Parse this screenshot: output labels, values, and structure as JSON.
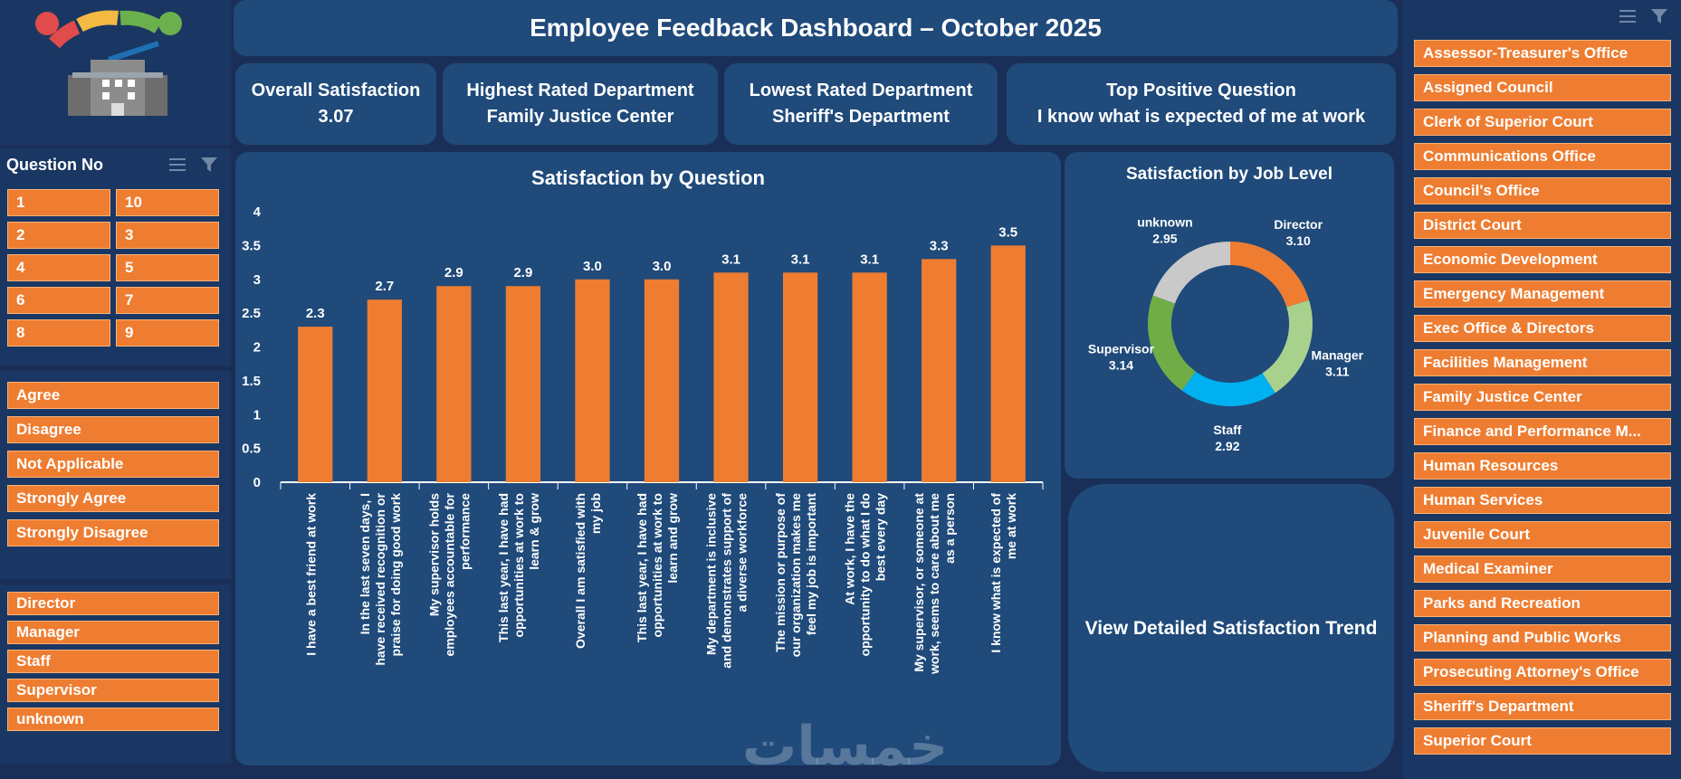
{
  "header": {
    "title": "Employee Feedback Dashboard – October 2025"
  },
  "kpis": [
    {
      "label": "Overall Satisfaction",
      "value": "3.07"
    },
    {
      "label": "Highest Rated Department",
      "value": "Family Justice Center"
    },
    {
      "label": "Lowest Rated Department",
      "value": "Sheriff's Department"
    },
    {
      "label": "Top Positive Question",
      "value": "I know what is expected of me at work"
    }
  ],
  "question_slicer": {
    "title": "Question No",
    "items": [
      "1",
      "10",
      "2",
      "3",
      "4",
      "5",
      "6",
      "7",
      "8",
      "9"
    ]
  },
  "answer_slicer": {
    "items": [
      "Agree",
      "Disagree",
      "Not Applicable",
      "Strongly Agree",
      "Strongly Disagree"
    ]
  },
  "level_slicer": {
    "items": [
      "Director",
      "Manager",
      "Staff",
      "Supervisor",
      "unknown"
    ]
  },
  "department_slicer": {
    "items": [
      "Assessor-Treasurer's Office",
      "Assigned Council",
      "Clerk of Superior Court",
      "Communications Office",
      "Council's Office",
      "District Court",
      "Economic Development",
      "Emergency Management",
      "Exec Office & Directors",
      "Facilities Management",
      "Family Justice Center",
      "Finance and Performance M...",
      "Human Resources",
      "Human Services",
      "Juvenile Court",
      "Medical Examiner",
      "Parks and Recreation",
      "Planning and Public Works",
      "Prosecuting Attorney's Office",
      "Sheriff's Department",
      "Superior Court"
    ]
  },
  "trend_button": {
    "label": "View Detailed Satisfaction Trend"
  },
  "watermark": "خمسات",
  "colors": {
    "accent": "#ee7d31",
    "panel": "#1f4a7a",
    "background": "#1a2f57"
  },
  "chart_data": [
    {
      "type": "bar",
      "title": "Satisfaction by Question",
      "categories": [
        "I have a best friend at work",
        "In the last seven days, I have received recognition or praise for doing good work",
        "My supervisor holds employees accountable for performance",
        "This last year, I have had opportunities at work to learn & grow",
        "Overall I am satisfied with my job",
        "This last year, I have had opportunities at work to learn and grow",
        "My department is inclusive and demonstrates support of a diverse workforce",
        "The mission or purpose of our organization makes me feel my job is important",
        "At work, I have the opportunity to do what I do best every day",
        "My supervisor, or someone at work, seems to care about me as a person",
        "I know what is expected of me at work"
      ],
      "values": [
        2.3,
        2.7,
        2.9,
        2.9,
        3.0,
        3.0,
        3.1,
        3.1,
        3.1,
        3.3,
        3.5
      ],
      "data_labels": [
        "2.3",
        "2.7",
        "2.9",
        "2.9",
        "3.0",
        "3.0",
        "3.1",
        "3.1",
        "3.1",
        "3.3",
        "3.5"
      ],
      "ylim": [
        0,
        4
      ],
      "yticks": [
        "0",
        "0.5",
        "1",
        "1.5",
        "2",
        "2.5",
        "3",
        "3.5",
        "4"
      ],
      "color": "#ee7d31",
      "grid": false
    },
    {
      "type": "pie",
      "title": "Satisfaction by Job Level",
      "labels": [
        "Director",
        "Manager",
        "Staff",
        "Supervisor",
        "unknown"
      ],
      "values": [
        3.1,
        3.11,
        2.92,
        3.14,
        2.95
      ],
      "value_labels": [
        "3.10",
        "3.11",
        "2.92",
        "3.14",
        "2.95"
      ],
      "colors": [
        "#ee7d31",
        "#a9d18e",
        "#00b0f0",
        "#70ad47",
        "#c9c9c9"
      ],
      "donut": true
    }
  ]
}
